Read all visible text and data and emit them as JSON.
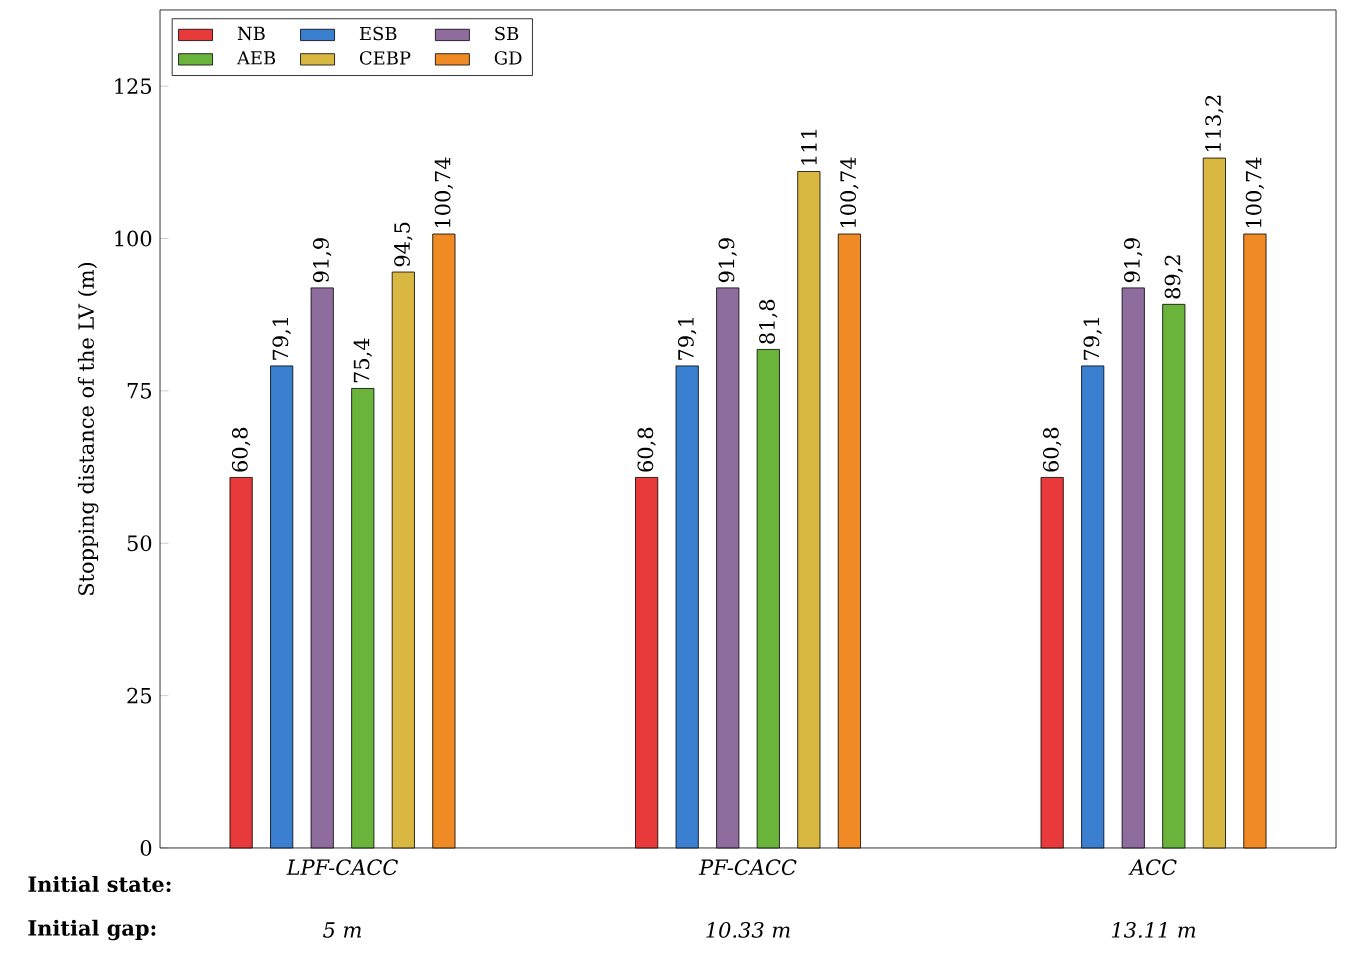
{
  "chart_data": {
    "type": "bar",
    "ylabel": "Stopping distance of the LV (m)",
    "categories": [
      "LPF-CACC",
      "PF-CACC",
      "ACC"
    ],
    "series": [
      {
        "name": "NB",
        "color": "#e83a3a",
        "values": [
          60.8,
          60.8,
          60.8
        ],
        "value_labels": [
          "60,8",
          "60,8",
          "60,8"
        ]
      },
      {
        "name": "ESB",
        "color": "#3a7fd0",
        "values": [
          79.1,
          79.1,
          79.1
        ],
        "value_labels": [
          "79,1",
          "79,1",
          "79,1"
        ]
      },
      {
        "name": "SB",
        "color": "#8e6c9e",
        "values": [
          91.9,
          91.9,
          91.9
        ],
        "value_labels": [
          "91,9",
          "91,9",
          "91,9"
        ]
      },
      {
        "name": "AEB",
        "color": "#6ab43c",
        "values": [
          75.4,
          81.8,
          89.2
        ],
        "value_labels": [
          "75,4",
          "81,8",
          "89,2"
        ]
      },
      {
        "name": "CEBP",
        "color": "#d8b840",
        "values": [
          94.5,
          111,
          113.2
        ],
        "value_labels": [
          "94,5",
          "111",
          "113,2"
        ]
      },
      {
        "name": "GD",
        "color": "#f08a24",
        "values": [
          100.74,
          100.74,
          100.74
        ],
        "value_labels": [
          "100,74",
          "100,74",
          "100,74"
        ]
      }
    ],
    "ylim": [
      0,
      137.5
    ],
    "yticks": [
      0,
      25,
      50,
      75,
      100,
      125
    ],
    "legend": "top left",
    "grid": false,
    "annotations": [
      "Initial state:",
      "Initial gap:",
      "5 m",
      "10.33 m",
      "13.11 m"
    ]
  }
}
